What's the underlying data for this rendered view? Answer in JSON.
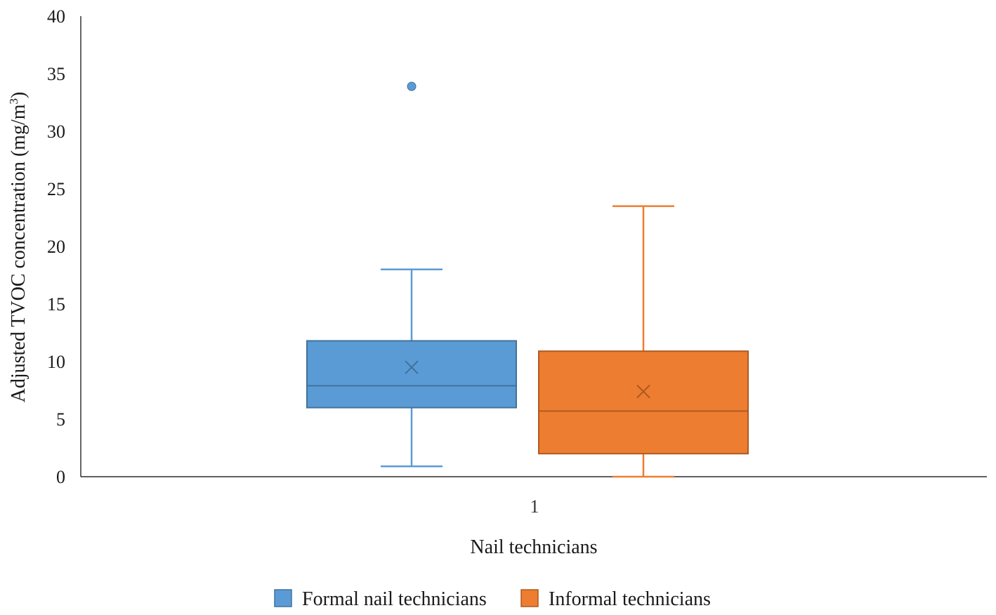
{
  "chart_data": {
    "type": "boxplot",
    "categories": [
      "1"
    ],
    "xlabel": "Nail technicians",
    "ylabel_main": "Adjusted TVOC concentration (mg/m",
    "ylabel_sup": "3",
    "ylabel_end": ")",
    "ylim": [
      0,
      40
    ],
    "yticks": [
      0,
      5,
      10,
      15,
      20,
      25,
      30,
      35,
      40
    ],
    "grid": false,
    "legend_position": "bottom",
    "series": [
      {
        "name": "Formal nail technicians",
        "color": "#5b9bd5",
        "stroke": "#41719c",
        "min": 0.9,
        "q1": 6.0,
        "median": 7.9,
        "q3": 11.8,
        "max": 18.0,
        "mean": 9.5,
        "outliers": [
          33.9
        ]
      },
      {
        "name": "Informal technicians",
        "color": "#ed7d31",
        "stroke": "#ae5a21",
        "min": 0.0,
        "q1": 2.0,
        "median": 5.7,
        "q3": 10.9,
        "max": 23.5,
        "mean": 7.4,
        "outliers": []
      }
    ]
  }
}
